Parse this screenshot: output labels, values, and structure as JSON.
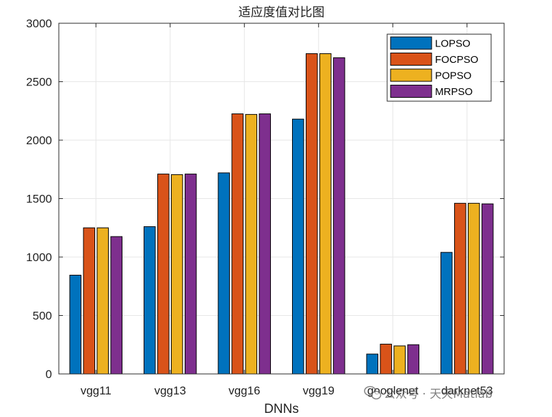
{
  "chart_data": {
    "type": "bar",
    "title": "适应度值对比图",
    "xlabel": "DNNs",
    "ylabel": "",
    "categories": [
      "vgg11",
      "vgg13",
      "vgg16",
      "vgg19",
      "googlenet",
      "darknet53"
    ],
    "ylim": [
      0,
      3000
    ],
    "yticks": [
      0,
      500,
      1000,
      1500,
      2000,
      2500,
      3000
    ],
    "grid": true,
    "legend_position": "top-right",
    "series": [
      {
        "name": "LOPSO",
        "color": "#0072BD",
        "values": [
          845,
          1260,
          1720,
          2180,
          170,
          1040
        ]
      },
      {
        "name": "FOCPSO",
        "color": "#D95319",
        "values": [
          1250,
          1710,
          2225,
          2740,
          255,
          1460
        ]
      },
      {
        "name": "POPSO",
        "color": "#EDB120",
        "values": [
          1250,
          1705,
          2220,
          2740,
          240,
          1460
        ]
      },
      {
        "name": "MRPSO",
        "color": "#7E2F8E",
        "values": [
          1175,
          1710,
          2225,
          2705,
          250,
          1455
        ]
      }
    ]
  },
  "watermark": {
    "icon": "wechat-icon",
    "text": "公众号 · 天天Matlab"
  }
}
